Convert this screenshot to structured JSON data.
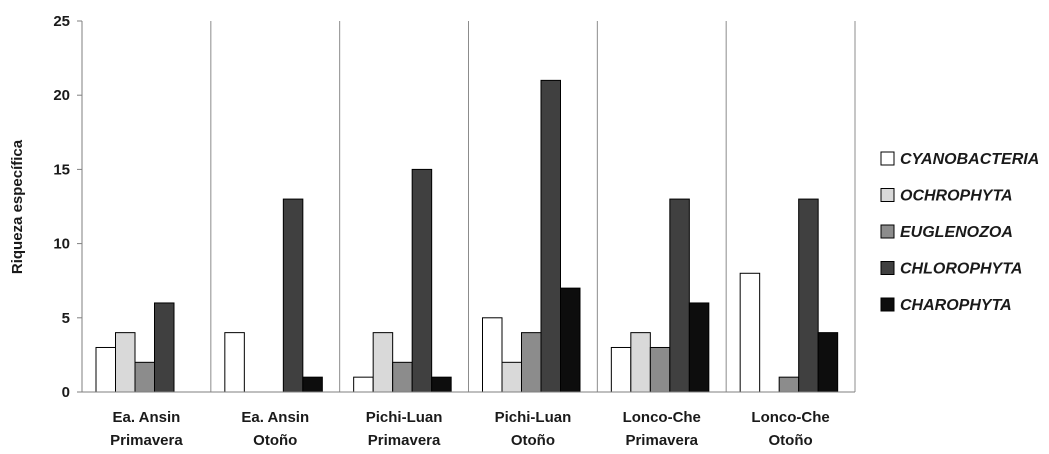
{
  "chart_data": {
    "type": "bar",
    "ylabel": "Riqueza específica",
    "xlabel": "",
    "ylim": [
      0,
      25
    ],
    "yticks": [
      "0",
      "5",
      "10",
      "15",
      "20",
      "25"
    ],
    "categories": [
      [
        "Ea. Ansin",
        "Primavera"
      ],
      [
        "Ea. Ansin",
        "Otoño"
      ],
      [
        "Pichi-Luan",
        "Primavera"
      ],
      [
        "Pichi-Luan",
        "Otoño"
      ],
      [
        "Lonco-Che",
        "Primavera"
      ],
      [
        "Lonco-Che",
        "Otoño"
      ]
    ],
    "series": [
      {
        "name": "CYANOBACTERIA",
        "color": "#ffffff",
        "values": [
          3,
          4,
          1,
          5,
          3,
          8
        ]
      },
      {
        "name": "OCHROPHYTA",
        "color": "#d9d9d9",
        "values": [
          4,
          0,
          4,
          2,
          4,
          0
        ]
      },
      {
        "name": "EUGLENOZOA",
        "color": "#8c8c8c",
        "values": [
          2,
          0,
          2,
          4,
          3,
          1
        ]
      },
      {
        "name": "CHLOROPHYTA",
        "color": "#404040",
        "values": [
          6,
          13,
          15,
          21,
          13,
          13
        ]
      },
      {
        "name": "CHAROPHYTA",
        "color": "#0d0d0d",
        "values": [
          0,
          1,
          1,
          7,
          6,
          4
        ]
      }
    ],
    "grid": "vertical separators between groups",
    "legend_position": "right"
  }
}
